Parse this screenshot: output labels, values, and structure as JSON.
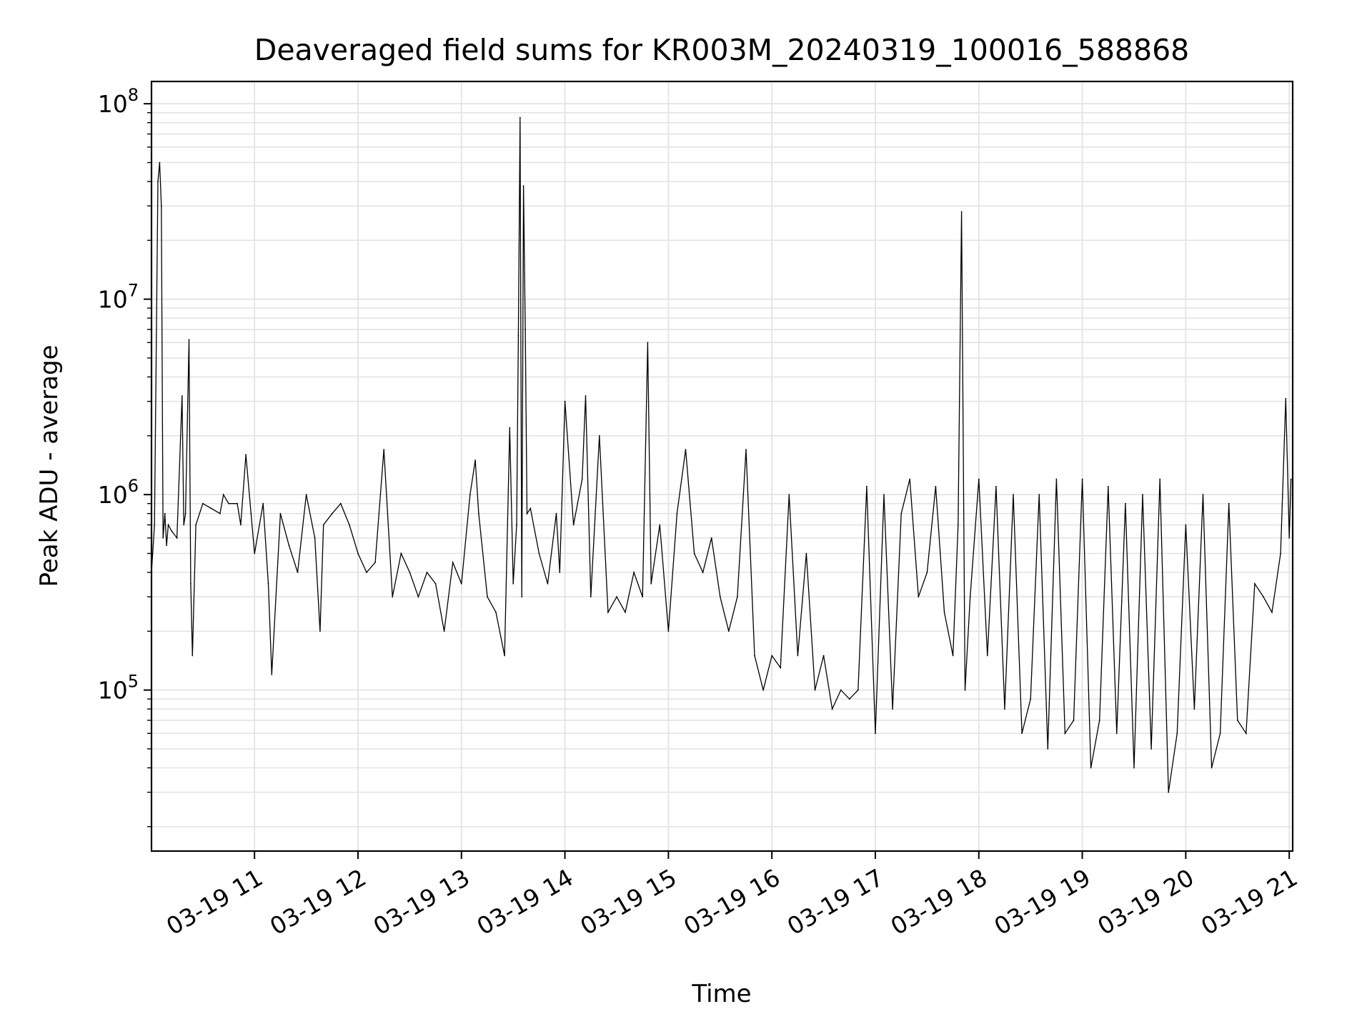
{
  "chart_data": {
    "type": "line",
    "title": "Deaveraged field sums for KR003M_20240319_100016_588868",
    "xlabel": "Time",
    "ylabel": "Peak ADU - average",
    "y_scale": "log",
    "ylim": [
      15000,
      130000000
    ],
    "xlim": [
      "2024-03-19T10:00:16",
      "2024-03-19T21:02:00"
    ],
    "grid": true,
    "legend": "none",
    "line_color": "#000000",
    "grid_color": "#e3e3e3",
    "x_ticks": [
      {
        "value": "2024-03-19T11:00",
        "label": "03-19 11"
      },
      {
        "value": "2024-03-19T12:00",
        "label": "03-19 12"
      },
      {
        "value": "2024-03-19T13:00",
        "label": "03-19 13"
      },
      {
        "value": "2024-03-19T14:00",
        "label": "03-19 14"
      },
      {
        "value": "2024-03-19T15:00",
        "label": "03-19 15"
      },
      {
        "value": "2024-03-19T16:00",
        "label": "03-19 16"
      },
      {
        "value": "2024-03-19T17:00",
        "label": "03-19 17"
      },
      {
        "value": "2024-03-19T18:00",
        "label": "03-19 18"
      },
      {
        "value": "2024-03-19T19:00",
        "label": "03-19 19"
      },
      {
        "value": "2024-03-19T20:00",
        "label": "03-19 20"
      },
      {
        "value": "2024-03-19T21:00",
        "label": "03-19 21"
      }
    ],
    "y_ticks": [
      {
        "value": 100000,
        "base": "10",
        "exp": "5"
      },
      {
        "value": 1000000,
        "base": "10",
        "exp": "6"
      },
      {
        "value": 10000000,
        "base": "10",
        "exp": "7"
      },
      {
        "value": 100000000,
        "base": "10",
        "exp": "8"
      }
    ],
    "series": [
      {
        "x": [
          "2024-03-19T10:00:16",
          "2024-03-19T10:02",
          "2024-03-19T10:04",
          "2024-03-19T10:05",
          "2024-03-19T10:06",
          "2024-03-19T10:07",
          "2024-03-19T10:08",
          "2024-03-19T10:09",
          "2024-03-19T10:10",
          "2024-03-19T10:12",
          "2024-03-19T10:15",
          "2024-03-19T10:18",
          "2024-03-19T10:19",
          "2024-03-19T10:20",
          "2024-03-19T10:22",
          "2024-03-19T10:23",
          "2024-03-19T10:24",
          "2024-03-19T10:26",
          "2024-03-19T10:30",
          "2024-03-19T10:35",
          "2024-03-19T10:40",
          "2024-03-19T10:42",
          "2024-03-19T10:45",
          "2024-03-19T10:50",
          "2024-03-19T10:52",
          "2024-03-19T10:55",
          "2024-03-19T10:58",
          "2024-03-19T11:00",
          "2024-03-19T11:05",
          "2024-03-19T11:08",
          "2024-03-19T11:10",
          "2024-03-19T11:15",
          "2024-03-19T11:20",
          "2024-03-19T11:25",
          "2024-03-19T11:30",
          "2024-03-19T11:35",
          "2024-03-19T11:38",
          "2024-03-19T11:40",
          "2024-03-19T11:45",
          "2024-03-19T11:50",
          "2024-03-19T11:55",
          "2024-03-19T12:00",
          "2024-03-19T12:05",
          "2024-03-19T12:10",
          "2024-03-19T12:15",
          "2024-03-19T12:20",
          "2024-03-19T12:25",
          "2024-03-19T12:30",
          "2024-03-19T12:35",
          "2024-03-19T12:40",
          "2024-03-19T12:45",
          "2024-03-19T12:50",
          "2024-03-19T12:55",
          "2024-03-19T13:00",
          "2024-03-19T13:05",
          "2024-03-19T13:08",
          "2024-03-19T13:10",
          "2024-03-19T13:15",
          "2024-03-19T13:20",
          "2024-03-19T13:25",
          "2024-03-19T13:28",
          "2024-03-19T13:30",
          "2024-03-19T13:32",
          "2024-03-19T13:33",
          "2024-03-19T13:34",
          "2024-03-19T13:35",
          "2024-03-19T13:36",
          "2024-03-19T13:37",
          "2024-03-19T13:38",
          "2024-03-19T13:40",
          "2024-03-19T13:45",
          "2024-03-19T13:50",
          "2024-03-19T13:55",
          "2024-03-19T13:57",
          "2024-03-19T14:00",
          "2024-03-19T14:05",
          "2024-03-19T14:10",
          "2024-03-19T14:12",
          "2024-03-19T14:15",
          "2024-03-19T14:20",
          "2024-03-19T14:25",
          "2024-03-19T14:30",
          "2024-03-19T14:35",
          "2024-03-19T14:40",
          "2024-03-19T14:45",
          "2024-03-19T14:48",
          "2024-03-19T14:50",
          "2024-03-19T14:55",
          "2024-03-19T15:00",
          "2024-03-19T15:05",
          "2024-03-19T15:10",
          "2024-03-19T15:15",
          "2024-03-19T15:20",
          "2024-03-19T15:25",
          "2024-03-19T15:30",
          "2024-03-19T15:35",
          "2024-03-19T15:40",
          "2024-03-19T15:45",
          "2024-03-19T15:50",
          "2024-03-19T15:55",
          "2024-03-19T16:00",
          "2024-03-19T16:05",
          "2024-03-19T16:10",
          "2024-03-19T16:15",
          "2024-03-19T16:20",
          "2024-03-19T16:25",
          "2024-03-19T16:30",
          "2024-03-19T16:35",
          "2024-03-19T16:40",
          "2024-03-19T16:45",
          "2024-03-19T16:50",
          "2024-03-19T16:55",
          "2024-03-19T17:00",
          "2024-03-19T17:05",
          "2024-03-19T17:10",
          "2024-03-19T17:15",
          "2024-03-19T17:20",
          "2024-03-19T17:25",
          "2024-03-19T17:30",
          "2024-03-19T17:35",
          "2024-03-19T17:40",
          "2024-03-19T17:45",
          "2024-03-19T17:48",
          "2024-03-19T17:50",
          "2024-03-19T17:52",
          "2024-03-19T17:55",
          "2024-03-19T18:00",
          "2024-03-19T18:05",
          "2024-03-19T18:10",
          "2024-03-19T18:15",
          "2024-03-19T18:20",
          "2024-03-19T18:25",
          "2024-03-19T18:30",
          "2024-03-19T18:35",
          "2024-03-19T18:40",
          "2024-03-19T18:45",
          "2024-03-19T18:50",
          "2024-03-19T18:55",
          "2024-03-19T19:00",
          "2024-03-19T19:05",
          "2024-03-19T19:10",
          "2024-03-19T19:15",
          "2024-03-19T19:20",
          "2024-03-19T19:25",
          "2024-03-19T19:30",
          "2024-03-19T19:35",
          "2024-03-19T19:40",
          "2024-03-19T19:45",
          "2024-03-19T19:50",
          "2024-03-19T19:55",
          "2024-03-19T20:00",
          "2024-03-19T20:05",
          "2024-03-19T20:10",
          "2024-03-19T20:15",
          "2024-03-19T20:20",
          "2024-03-19T20:25",
          "2024-03-19T20:30",
          "2024-03-19T20:35",
          "2024-03-19T20:40",
          "2024-03-19T20:45",
          "2024-03-19T20:50",
          "2024-03-19T20:55",
          "2024-03-19T20:58",
          "2024-03-19T21:00",
          "2024-03-19T21:01"
        ],
        "y": [
          400000,
          700000,
          40000000,
          50000000,
          30000000,
          600000,
          800000,
          550000,
          700000,
          650000,
          600000,
          3200000,
          700000,
          800000,
          6200000,
          350000,
          150000,
          700000,
          900000,
          850000,
          800000,
          1000000,
          900000,
          900000,
          700000,
          1600000,
          800000,
          500000,
          900000,
          350000,
          120000,
          800000,
          550000,
          400000,
          1000000,
          600000,
          200000,
          700000,
          800000,
          900000,
          700000,
          500000,
          400000,
          450000,
          1700000,
          300000,
          500000,
          400000,
          300000,
          400000,
          350000,
          200000,
          450000,
          350000,
          1000000,
          1500000,
          800000,
          300000,
          250000,
          150000,
          2200000,
          350000,
          700000,
          6500000,
          85000000,
          300000,
          38000000,
          7000000,
          800000,
          850000,
          500000,
          350000,
          800000,
          400000,
          3000000,
          700000,
          1200000,
          3200000,
          300000,
          2000000,
          250000,
          300000,
          250000,
          400000,
          300000,
          6000000,
          350000,
          700000,
          200000,
          800000,
          1700000,
          500000,
          400000,
          600000,
          300000,
          200000,
          300000,
          1700000,
          150000,
          100000,
          150000,
          130000,
          1000000,
          150000,
          500000,
          100000,
          150000,
          80000,
          100000,
          90000,
          100000,
          1100000,
          60000,
          1000000,
          80000,
          800000,
          1200000,
          300000,
          400000,
          1100000,
          250000,
          150000,
          700000,
          28000000,
          100000,
          300000,
          1200000,
          150000,
          1100000,
          80000,
          1000000,
          60000,
          90000,
          1000000,
          50000,
          1200000,
          60000,
          70000,
          1200000,
          40000,
          70000,
          1100000,
          60000,
          900000,
          40000,
          1000000,
          50000,
          1200000,
          30000,
          60000,
          700000,
          80000,
          1000000,
          40000,
          60000,
          900000,
          70000,
          60000,
          350000,
          300000,
          250000,
          500000,
          3100000,
          600000,
          1200000
        ]
      }
    ]
  }
}
